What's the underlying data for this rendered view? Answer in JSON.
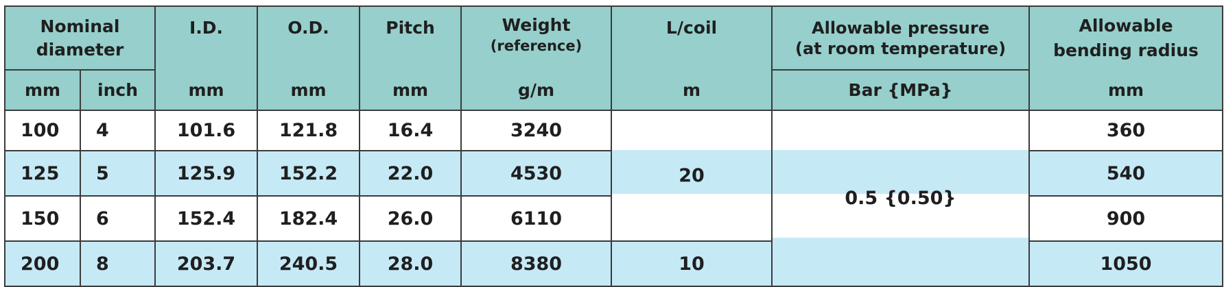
{
  "table": {
    "header_top": {
      "nominal_diameter": "Nominal diameter",
      "id": "I.D.",
      "od": "O.D.",
      "pitch": "Pitch",
      "weight": "Weight",
      "weight_note": "(reference)",
      "l_coil": "L/coil",
      "pressure": "Allowable pressure",
      "pressure_note": "(at room temperature)",
      "bending": "Allowable bending radius"
    },
    "header_units": [
      "mm",
      "inch",
      "mm",
      "mm",
      "mm",
      "g/m",
      "m",
      "Bar {MPa}",
      "mm"
    ],
    "rows": [
      [
        "100",
        "4",
        "101.6",
        "121.8",
        "16.4",
        "3240",
        "360"
      ],
      [
        "125",
        "5",
        "125.9",
        "152.2",
        "22.0",
        "4530",
        "540"
      ],
      [
        "150",
        "6",
        "152.4",
        "182.4",
        "26.0",
        "6110",
        "900"
      ],
      [
        "200",
        "8",
        "203.7",
        "240.5",
        "28.0",
        "8380",
        "1050"
      ]
    ],
    "l_coil_values": [
      "20",
      "10"
    ],
    "pressure_value": "0.5 {0.50}"
  }
}
